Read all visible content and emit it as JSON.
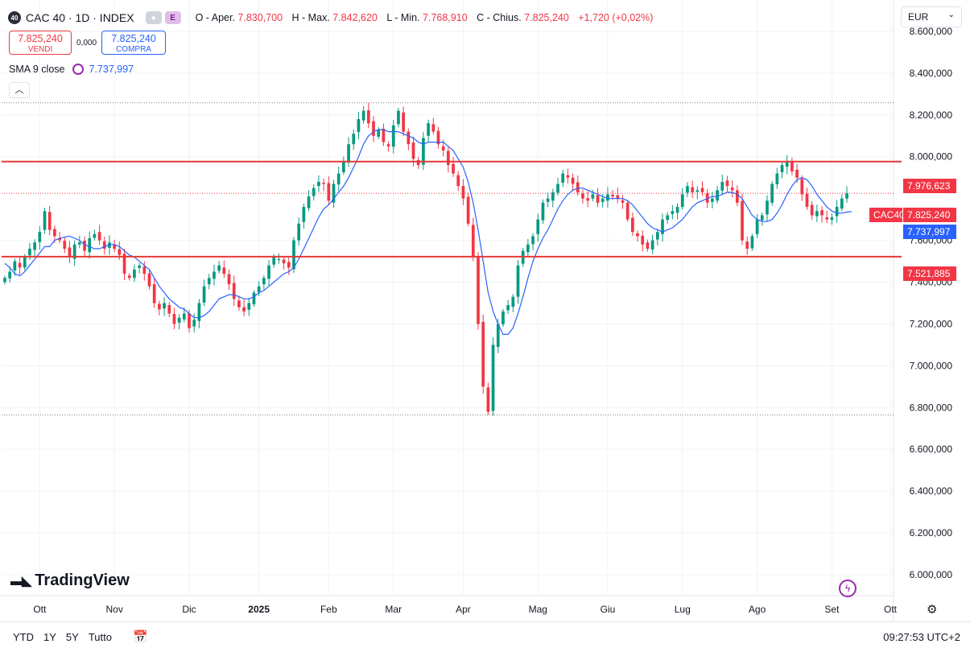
{
  "header": {
    "badge": "40",
    "symbol_title": "CAC 40 · 1D · INDEX",
    "pill_e": "E",
    "ohlc": [
      {
        "label": "O - Aper.",
        "value": "7.830,700"
      },
      {
        "label": "H - Max.",
        "value": "7.842,620"
      },
      {
        "label": "L - Min.",
        "value": "7.768,910"
      },
      {
        "label": "C - Chius.",
        "value": "7.825,240"
      }
    ],
    "change": "+1,720 (+0,02%)"
  },
  "trade": {
    "sell_price": "7.825,240",
    "sell_label": "VENDI",
    "spread": "0,000",
    "buy_price": "7.825,240",
    "buy_label": "COMPRA"
  },
  "indicator": {
    "label": "SMA 9 close",
    "value": "7.737,997"
  },
  "currency": "EUR",
  "logo_text": "TradingView",
  "bottom": {
    "ranges": [
      "YTD",
      "1Y",
      "5Y",
      "Tutto"
    ],
    "clock": "09:27:53 UTC+2"
  },
  "price_labels": {
    "resistance": "7.976,623",
    "symbol_tag": "CAC40",
    "last": "7.825,240",
    "sma": "7.737,997",
    "support": "7.521,885"
  },
  "colors": {
    "up": "#089981",
    "down": "#f23645",
    "sma": "#2962ff",
    "level_line": "#e53935",
    "grid": "#f0f3fa"
  },
  "chart_data": {
    "type": "candlestick",
    "ylim": [
      5900,
      8750
    ],
    "y_ticks": [
      {
        "value": 8600,
        "label": "8.600,000"
      },
      {
        "value": 8400,
        "label": "8.400,000"
      },
      {
        "value": 8200,
        "label": "8.200,000"
      },
      {
        "value": 8000,
        "label": "8.000,000"
      },
      {
        "value": 7600,
        "label": "7.600,000"
      },
      {
        "value": 7400,
        "label": "7.400,000"
      },
      {
        "value": 7200,
        "label": "7.200,000"
      },
      {
        "value": 7000,
        "label": "7.000,000"
      },
      {
        "value": 6800,
        "label": "6.800,000"
      },
      {
        "value": 6600,
        "label": "6.600,000"
      },
      {
        "value": 6400,
        "label": "6.400,000"
      },
      {
        "value": 6200,
        "label": "6.200,000"
      },
      {
        "value": 6000,
        "label": "6.000,000"
      }
    ],
    "x_ticks": [
      "Ott",
      "Nov",
      "Dic",
      "2025",
      "Feb",
      "Mar",
      "Apr",
      "Mag",
      "Giu",
      "Lug",
      "Ago",
      "Set",
      "Ott"
    ],
    "horizontal_levels": [
      7976.623,
      7521.885
    ],
    "dotted_levels": [
      8258,
      7825.24,
      6764
    ],
    "series": [
      {
        "name": "CAC 40",
        "close": [
          7420,
          7450,
          7500,
          7470,
          7520,
          7560,
          7590,
          7640,
          7740,
          7650,
          7620,
          7600,
          7560,
          7520,
          7580,
          7590,
          7550,
          7610,
          7630,
          7600,
          7560,
          7590,
          7560,
          7530,
          7440,
          7420,
          7460,
          7480,
          7440,
          7380,
          7300,
          7270,
          7300,
          7250,
          7200,
          7230,
          7250,
          7180,
          7220,
          7300,
          7380,
          7420,
          7450,
          7480,
          7440,
          7390,
          7320,
          7280,
          7260,
          7300,
          7350,
          7380,
          7420,
          7480,
          7520,
          7510,
          7490,
          7470,
          7600,
          7680,
          7760,
          7810,
          7850,
          7880,
          7870,
          7790,
          7870,
          7920,
          7980,
          8060,
          8110,
          8180,
          8220,
          8160,
          8100,
          8130,
          8070,
          8050,
          8150,
          8220,
          8120,
          8060,
          7990,
          7960,
          8090,
          8160,
          8120,
          8060,
          8030,
          7960,
          7920,
          7860,
          7800,
          7680,
          7520,
          7200,
          6900,
          6780,
          7100,
          7200,
          7260,
          7290,
          7330,
          7480,
          7550,
          7580,
          7620,
          7700,
          7780,
          7800,
          7830,
          7870,
          7920,
          7900,
          7870,
          7830,
          7800,
          7790,
          7820,
          7780,
          7800,
          7820,
          7810,
          7800,
          7780,
          7700,
          7640,
          7620,
          7580,
          7560,
          7600,
          7640,
          7700,
          7720,
          7740,
          7760,
          7820,
          7860,
          7830,
          7840,
          7830,
          7780,
          7800,
          7840,
          7880,
          7860,
          7840,
          7780,
          7600,
          7560,
          7620,
          7700,
          7720,
          7790,
          7870,
          7920,
          7960,
          7980,
          7930,
          7900,
          7820,
          7760,
          7720,
          7740,
          7720,
          7700,
          7710,
          7760,
          7800,
          7825
        ]
      },
      {
        "name": "SMA 9 close",
        "values": [
          7490,
          7470,
          7440,
          7430,
          7450,
          7480,
          7510,
          7540,
          7570,
          7570,
          7600,
          7610,
          7615,
          7620,
          7610,
          7600,
          7580,
          7570,
          7560,
          7560,
          7570,
          7580,
          7580,
          7570,
          7550,
          7530,
          7520,
          7500,
          7480,
          7460,
          7420,
          7380,
          7350,
          7320,
          7300,
          7280,
          7270,
          7250,
          7230,
          7230,
          7240,
          7260,
          7290,
          7320,
          7330,
          7340,
          7340,
          7330,
          7320,
          7320,
          7330,
          7350,
          7360,
          7380,
          7400,
          7420,
          7440,
          7450,
          7470,
          7510,
          7560,
          7610,
          7660,
          7710,
          7750,
          7770,
          7800,
          7830,
          7860,
          7900,
          7950,
          8000,
          8060,
          8100,
          8120,
          8130,
          8130,
          8120,
          8120,
          8120,
          8110,
          8100,
          8090,
          8070,
          8060,
          8070,
          8070,
          8070,
          8070,
          8050,
          8030,
          7990,
          7950,
          7880,
          7780,
          7650,
          7500,
          7350,
          7260,
          7200,
          7150,
          7150,
          7180,
          7250,
          7330,
          7420,
          7500,
          7560,
          7610,
          7650,
          7700,
          7750,
          7790,
          7820,
          7840,
          7850,
          7850,
          7840,
          7830,
          7820,
          7810,
          7800,
          7800,
          7800,
          7800,
          7790,
          7770,
          7740,
          7710,
          7680,
          7660,
          7650,
          7640,
          7650,
          7660,
          7680,
          7700,
          7730,
          7760,
          7780,
          7790,
          7800,
          7810,
          7810,
          7820,
          7830,
          7830,
          7820,
          7800,
          7760,
          7720,
          7700,
          7690,
          7690,
          7700,
          7730,
          7770,
          7820,
          7860,
          7890,
          7900,
          7890,
          7860,
          7820,
          7790,
          7760,
          7740,
          7730,
          7730,
          7735,
          7738
        ]
      }
    ]
  }
}
